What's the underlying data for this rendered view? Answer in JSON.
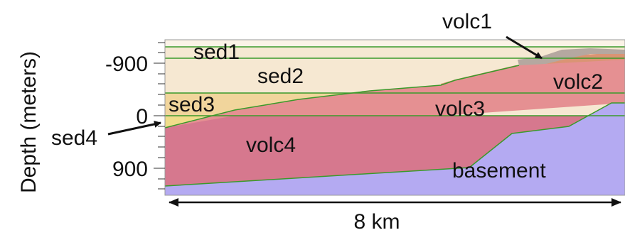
{
  "axis_title": "Depth (meters)",
  "y_ticks": [
    "-900",
    "0",
    "900"
  ],
  "layers": [
    "sed1",
    "sed2",
    "sed3",
    "sed4",
    "volc1",
    "volc2",
    "volc3",
    "volc4",
    "basement"
  ],
  "scale_label": "8 km"
}
